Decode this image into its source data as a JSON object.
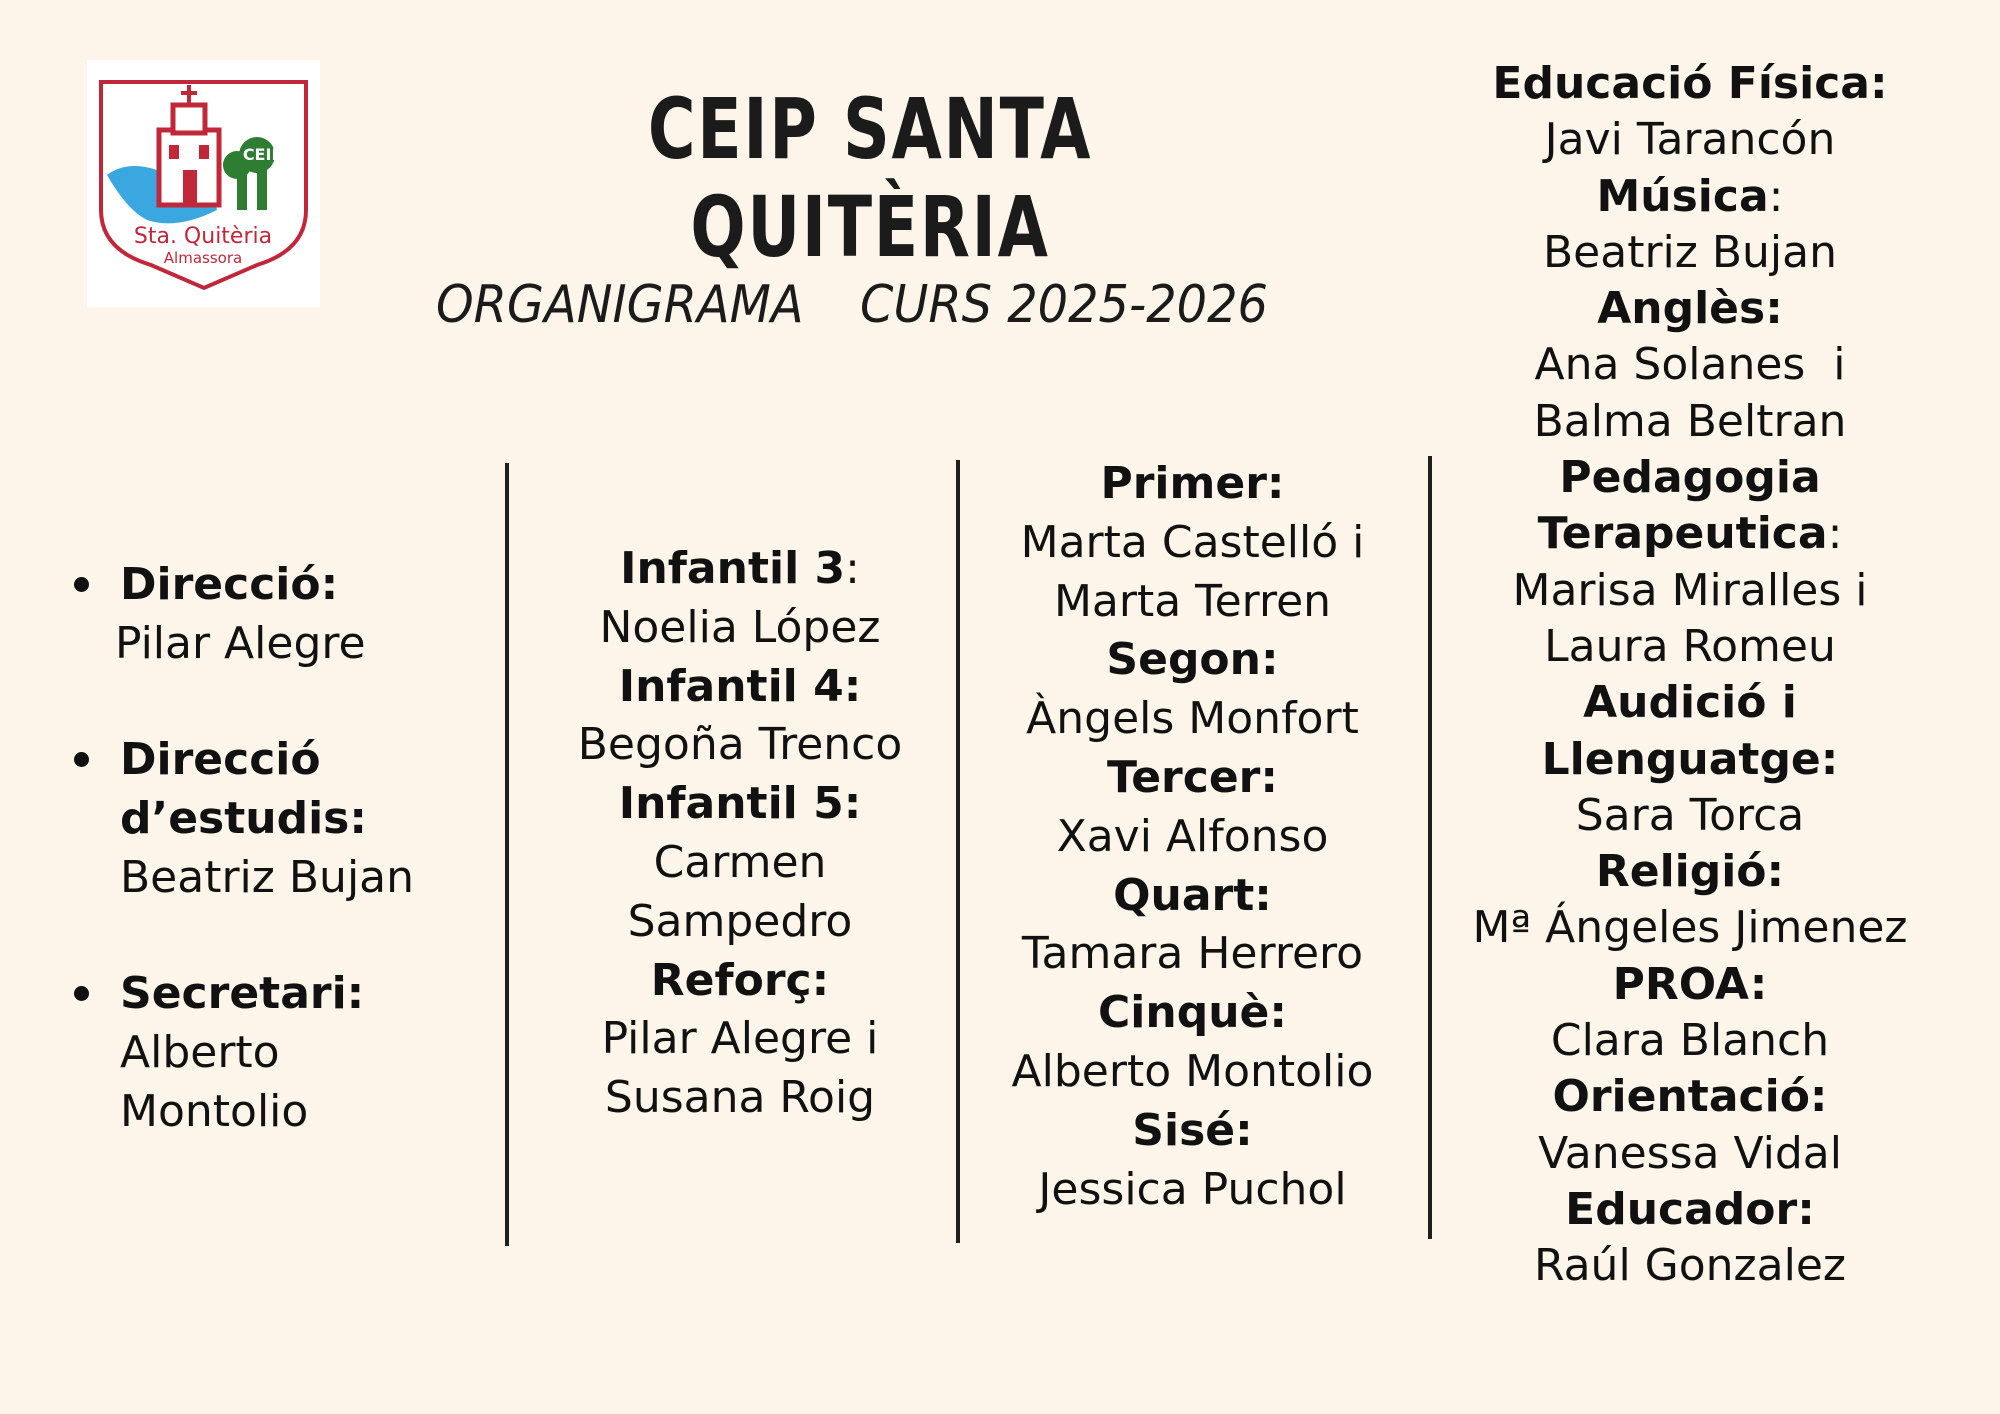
{
  "header": {
    "title": "CEIP SANTA QUITÈRIA",
    "subtitle_left": "ORGANIGRAMA",
    "subtitle_right": "CURS 2025-2026"
  },
  "logo": {
    "icon": "school-logo-icon",
    "text_badge": "CEIP",
    "text_name": "Sta. Quitèria",
    "text_town": "Almassora",
    "colors": {
      "frame": "#c0283a",
      "water": "#3aa7e0",
      "tree": "#2e7d32"
    }
  },
  "management": [
    {
      "role": "Direcció:",
      "name": "Pilar Alegre"
    },
    {
      "role_1": "Direcció",
      "role_2": "d’estudis:",
      "name": "Beatriz Bujan"
    },
    {
      "role": "Secretari:",
      "name_1": "Alberto",
      "name_2": "Montolio"
    }
  ],
  "infantil": {
    "i3_role": "Infantil 3",
    "i3_colon": ":",
    "i3_name": "Noelia López",
    "i4_role": "Infantil 4:",
    "i4_name": "Begoña Trenco",
    "i5_role": "Infantil 5:",
    "i5_name_1": "Carmen",
    "i5_name_2": "Sampedro",
    "reforc_role": "Reforç:",
    "reforc_name_1": "Pilar Alegre i",
    "reforc_name_2": "Susana Roig"
  },
  "primaria": {
    "primer_role": "Primer:",
    "primer_name_1": "Marta Castelló i",
    "primer_name_2": "Marta Terren",
    "segon_role": "Segon:",
    "segon_name": "Àngels Monfort",
    "tercer_role": "Tercer:",
    "tercer_name": "Xavi Alfonso",
    "quart_role": "Quart:",
    "quart_name": "Tamara Herrero",
    "cinque_role": "Cinquè:",
    "cinque_name": "Alberto Montolio",
    "sise_role": "Sisé:",
    "sise_name": "Jessica Puchol"
  },
  "specialists": {
    "ef_role": "Educació Física:",
    "ef_name": "Javi Tarancón",
    "musica_role": "Música",
    "musica_colon": ":",
    "musica_name": "Beatriz Bujan",
    "angles_role": "Anglès:",
    "angles_name_1": "Ana Solanes  i",
    "angles_name_2": "Balma Beltran",
    "pt_role_1": "Pedagogia",
    "pt_role_2": "Terapeutica",
    "pt_colon": ":",
    "pt_name_1": "Marisa Miralles i",
    "pt_name_2": "Laura Romeu",
    "al_role_1": "Audició i",
    "al_role_2": "Llenguatge:",
    "al_name": "Sara Torca",
    "religio_role": "Religió:",
    "religio_name": "Mª Ángeles Jimenez",
    "proa_role": "PROA:",
    "proa_name": "Clara Blanch",
    "orientacio_role": "Orientació:",
    "orientacio_name": "Vanessa Vidal",
    "educador_role": "Educador:",
    "educador_name": "Raúl Gonzalez"
  }
}
